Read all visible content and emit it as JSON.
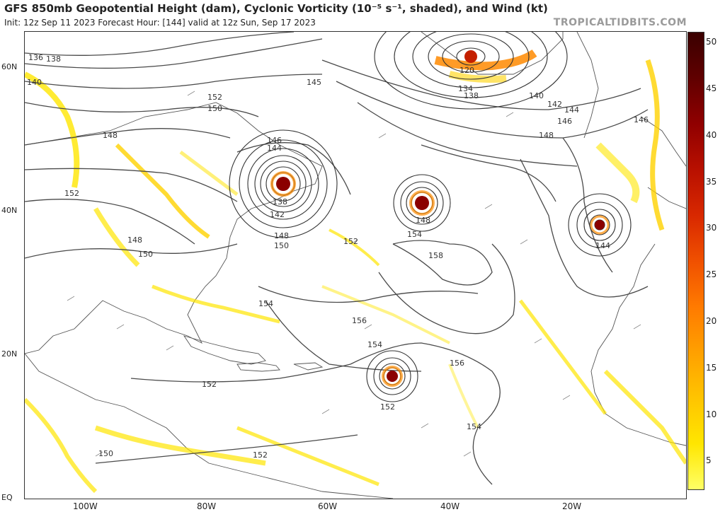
{
  "header": {
    "title": "GFS 850mb Geopotential Height (dam), Cyclonic Vorticity (10⁻⁵ s⁻¹, shaded), and Wind (kt)",
    "subtitle": "Init: 12z Sep 11 2023   Forecast Hour: [144]   valid at 12z Sun, Sep 17 2023",
    "credit": "TROPICALTIDBITS.COM"
  },
  "axes": {
    "lat_labels": [
      "60N",
      "40N",
      "20N",
      "EQ"
    ],
    "lon_labels": [
      "100W",
      "80W",
      "60W",
      "40W",
      "20W"
    ]
  },
  "colorbar": {
    "labels": [
      "50",
      "45",
      "40",
      "35",
      "30",
      "25",
      "20",
      "15",
      "10",
      "5"
    ],
    "colors": [
      "#ffff66",
      "#ffe600",
      "#ffc400",
      "#ffa000",
      "#ff7a00",
      "#f05000",
      "#d82800",
      "#b81000",
      "#900000",
      "#600000",
      "#3a0000"
    ]
  },
  "cyclones": [
    {
      "id": "cyclone-nova-scotia",
      "center_label": "138"
    },
    {
      "id": "cyclone-mid-atlantic",
      "center_label": "148"
    },
    {
      "id": "cyclone-azores",
      "center_label": "144"
    },
    {
      "id": "cyclone-tropical",
      "center_label": "152"
    },
    {
      "id": "low-greenland",
      "center_label": "120"
    }
  ],
  "contour_labels": [
    "136",
    "138",
    "140",
    "148",
    "152",
    "150",
    "152",
    "146",
    "144",
    "142",
    "148",
    "150",
    "152",
    "154",
    "158",
    "156",
    "154",
    "156",
    "154",
    "152",
    "150",
    "152",
    "148",
    "150",
    "140",
    "142",
    "144",
    "146",
    "148",
    "134",
    "138",
    "145",
    "146",
    "154"
  ]
}
